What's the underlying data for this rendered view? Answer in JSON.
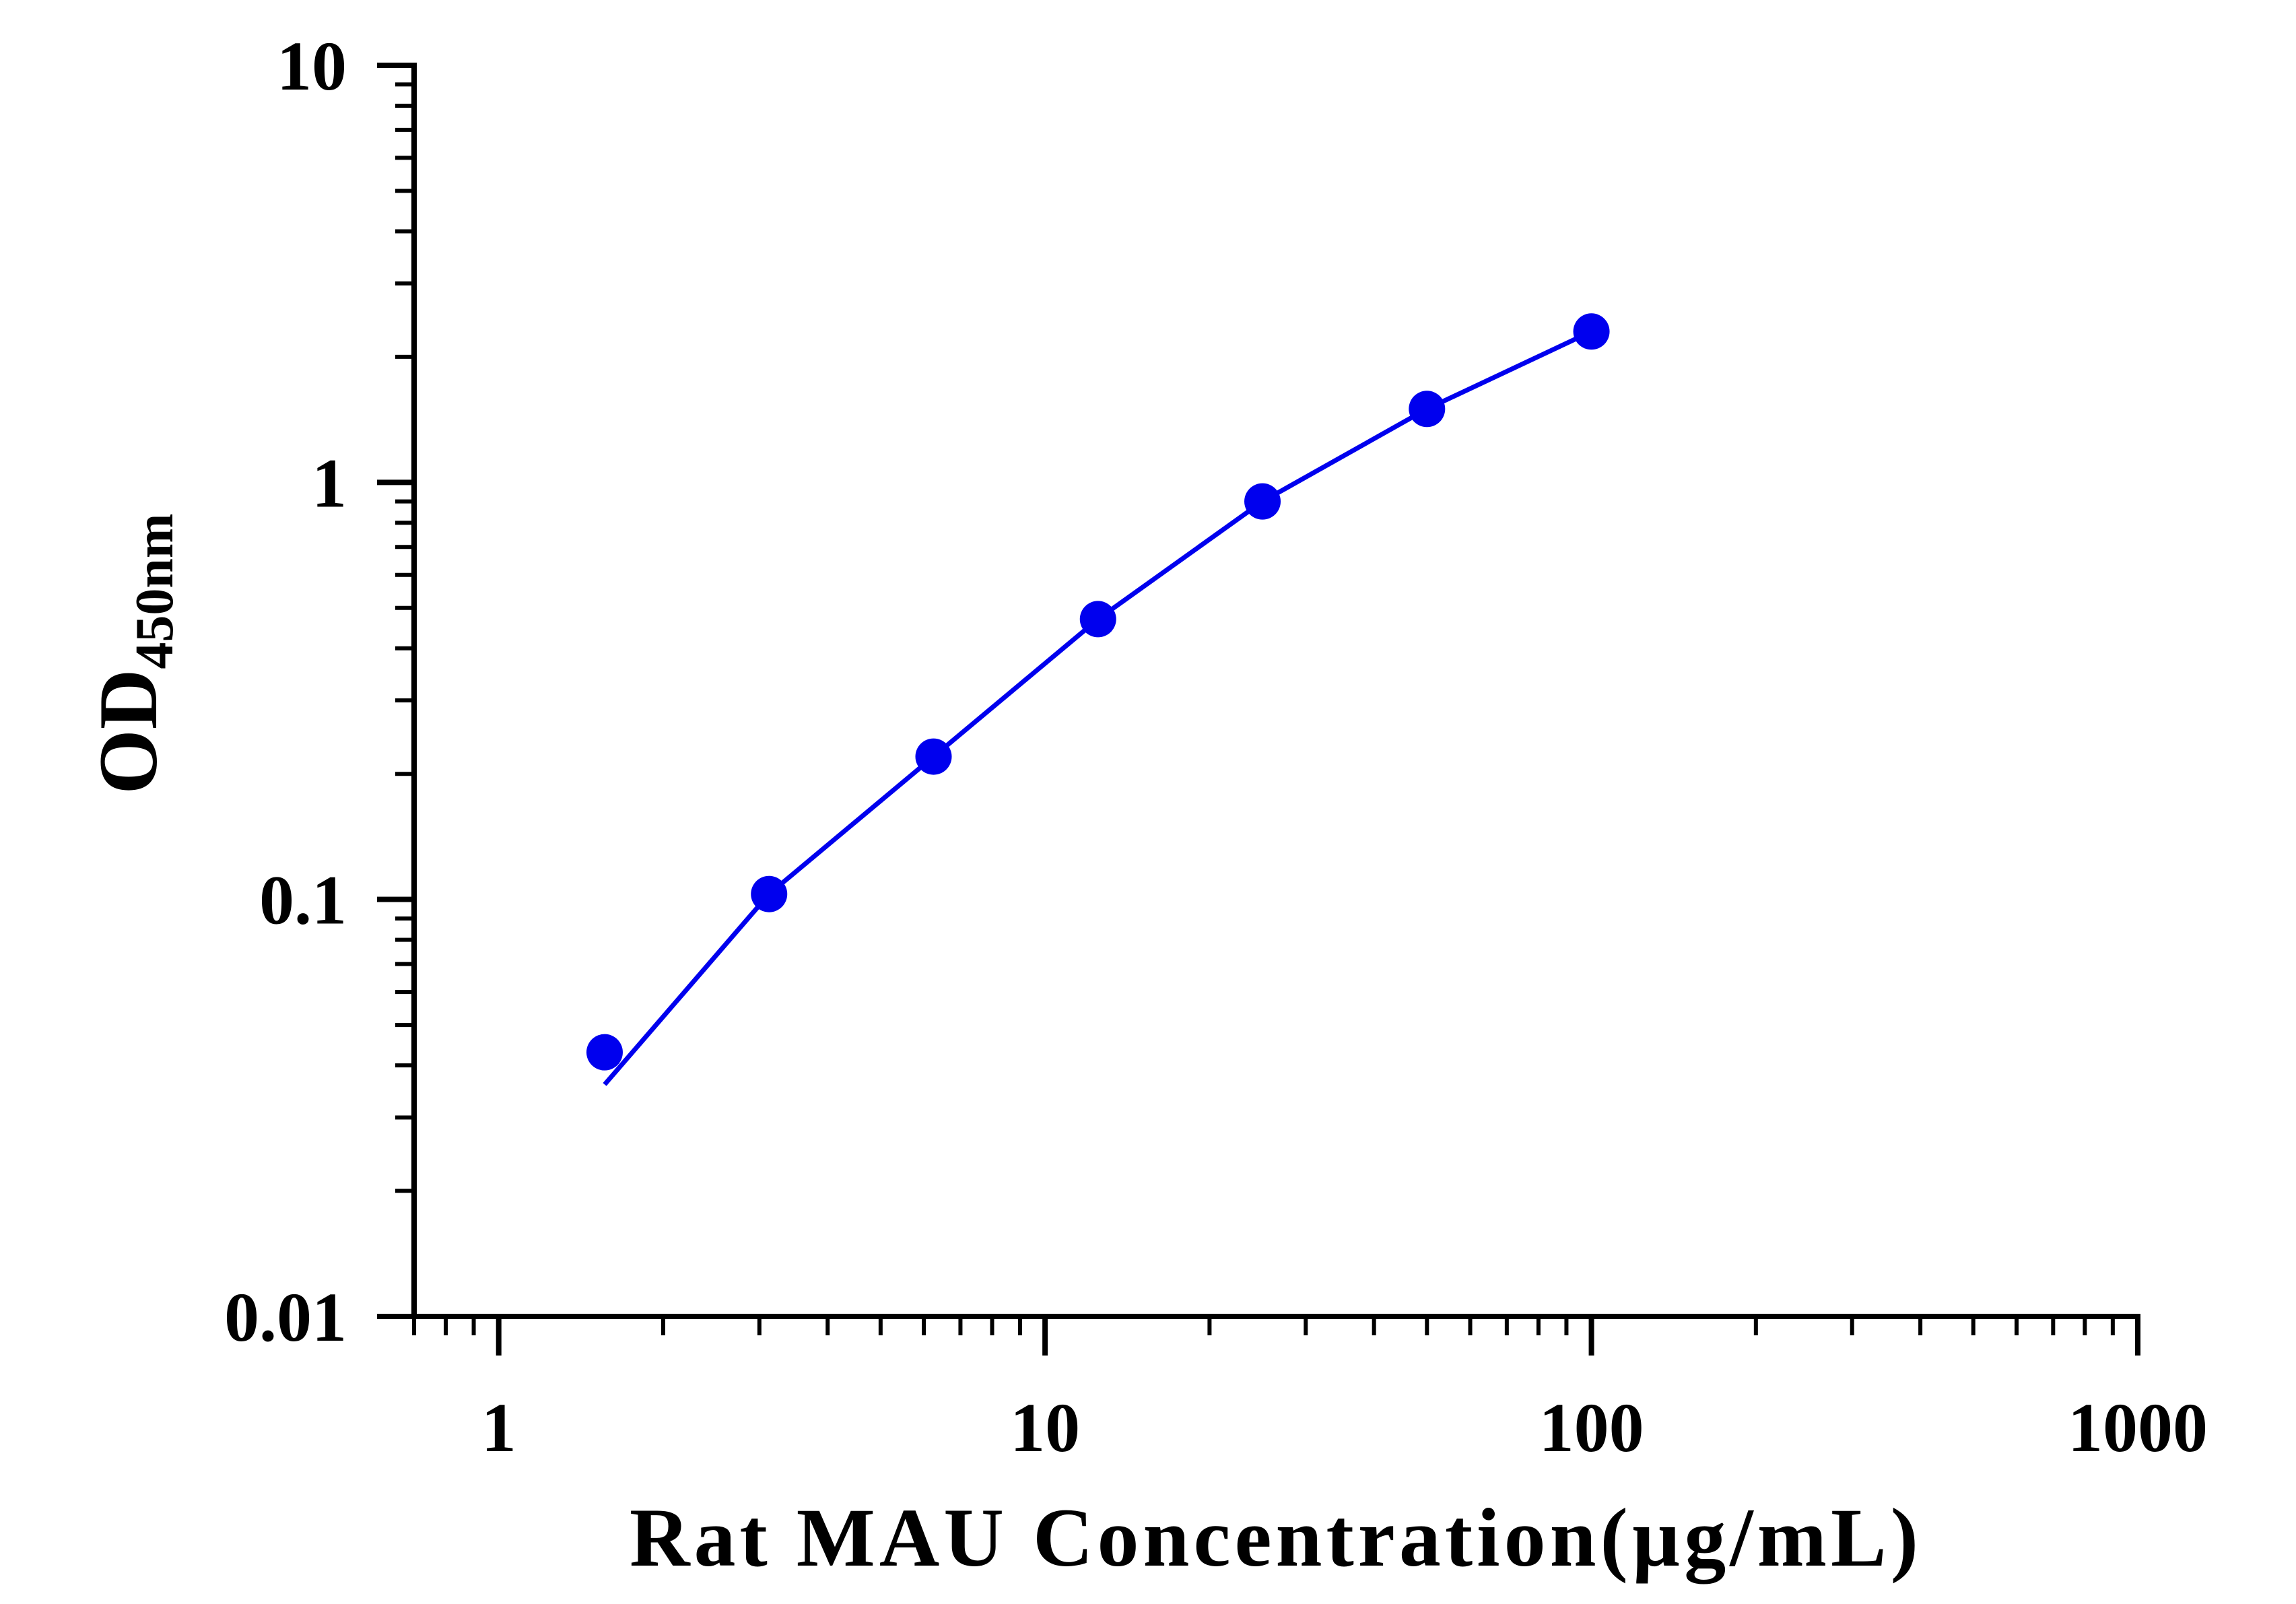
{
  "chart_data": {
    "type": "scatter",
    "x_scale": "log",
    "y_scale": "log",
    "xlim": [
      0.7,
      1000
    ],
    "ylim": [
      0.01,
      10
    ],
    "xlabel": "Rat MAU Concentration(µg/mL)",
    "ylabel_main": "OD",
    "ylabel_sub": "450nm",
    "x_ticks": [
      {
        "value": 1,
        "label": "1"
      },
      {
        "value": 10,
        "label": "10"
      },
      {
        "value": 100,
        "label": "100"
      },
      {
        "value": 1000,
        "label": "1000"
      }
    ],
    "y_ticks": [
      {
        "value": 0.01,
        "label": "0.01"
      },
      {
        "value": 0.1,
        "label": "0.1"
      },
      {
        "value": 1,
        "label": "1"
      },
      {
        "value": 10,
        "label": "10"
      }
    ],
    "grid": false,
    "series": [
      {
        "color": "#0000ee",
        "points": [
          {
            "x": 1.5625,
            "y": 0.043
          },
          {
            "x": 3.125,
            "y": 0.103
          },
          {
            "x": 6.25,
            "y": 0.22
          },
          {
            "x": 12.5,
            "y": 0.47
          },
          {
            "x": 25,
            "y": 0.9
          },
          {
            "x": 50,
            "y": 1.5
          },
          {
            "x": 100,
            "y": 2.3
          }
        ],
        "fit_curve": [
          {
            "x": 1.5625,
            "y": 0.036
          },
          {
            "x": 3.125,
            "y": 0.103
          },
          {
            "x": 6.25,
            "y": 0.22
          },
          {
            "x": 12.5,
            "y": 0.47
          },
          {
            "x": 25,
            "y": 0.9
          },
          {
            "x": 50,
            "y": 1.5
          },
          {
            "x": 100,
            "y": 2.3
          }
        ]
      }
    ]
  }
}
